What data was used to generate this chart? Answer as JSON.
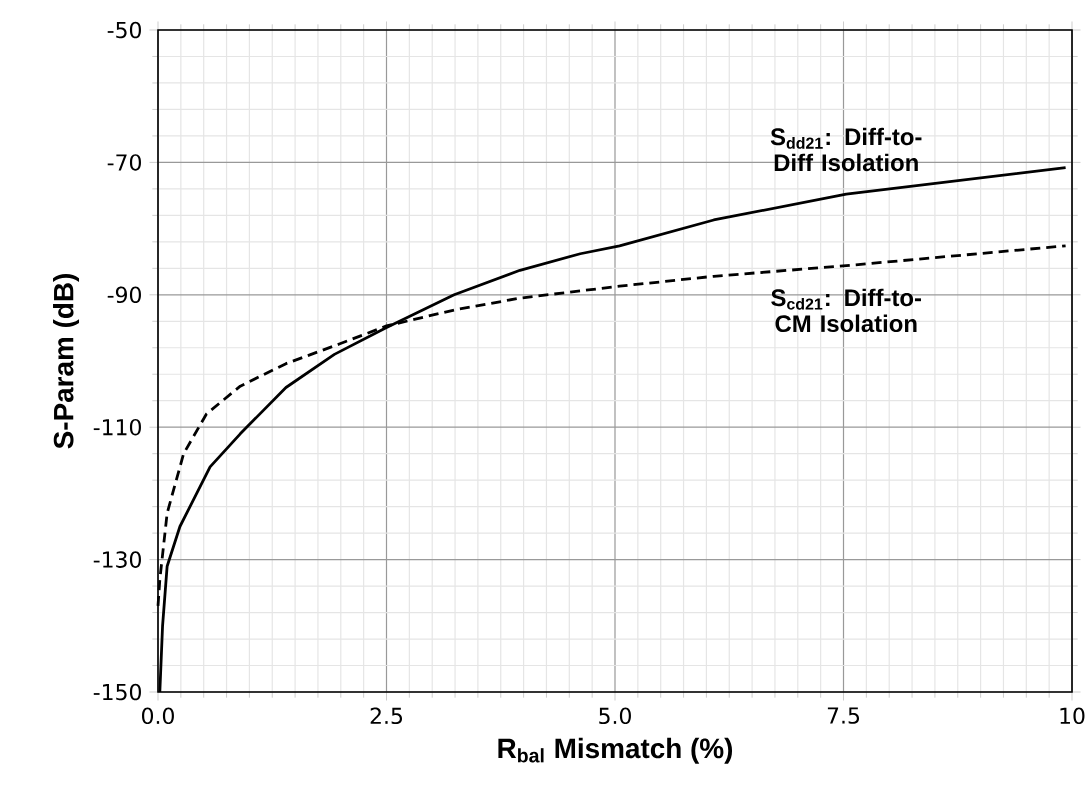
{
  "chart_data": {
    "type": "line",
    "xlabel": "R$_{bal}$ Mismatch (%)",
    "ylabel": "S-Param (dB)",
    "xlim": [
      0,
      10
    ],
    "ylim": [
      -150,
      -50
    ],
    "xticks": [
      {
        "value": 0,
        "label": "0.0"
      },
      2.5,
      {
        "value": 5,
        "label": "5.0"
      },
      7.5,
      10
    ],
    "yticks": [
      -150,
      -130,
      -110,
      -90,
      -70,
      -50
    ],
    "grid": true,
    "legend": false,
    "series": [
      {
        "name": "S$_{dd21}$: Diff-to-Diff Isolation",
        "color": "#000000",
        "line_style": "solid",
        "x": [
          0.02,
          0.05,
          0.1,
          0.24,
          0.57,
          0.9,
          1.4,
          1.93,
          2.49,
          3.24,
          3.96,
          4.62,
          5.05,
          6.08,
          7.53,
          9.93
        ],
        "values": [
          -150,
          -140,
          -131,
          -125,
          -116,
          -111,
          -104,
          -99,
          -95,
          -90,
          -86.3,
          -83.8,
          -82.6,
          -78.7,
          -74.8,
          -70.8
        ]
      },
      {
        "name": "S$_{cd21}$: Diff-to-CM Isolation",
        "color": "#000000",
        "line_style": "dashed",
        "x": [
          0.0,
          0.02,
          0.1,
          0.28,
          0.53,
          0.9,
          1.4,
          1.99,
          2.5,
          3.24,
          3.96,
          5.05,
          6.08,
          7.53,
          9.93
        ],
        "values": [
          -137,
          -133,
          -123,
          -114,
          -108,
          -103.8,
          -100.4,
          -97.4,
          -94.7,
          -92.3,
          -90.5,
          -88.7,
          -87.2,
          -85.6,
          -82.6
        ]
      }
    ]
  }
}
